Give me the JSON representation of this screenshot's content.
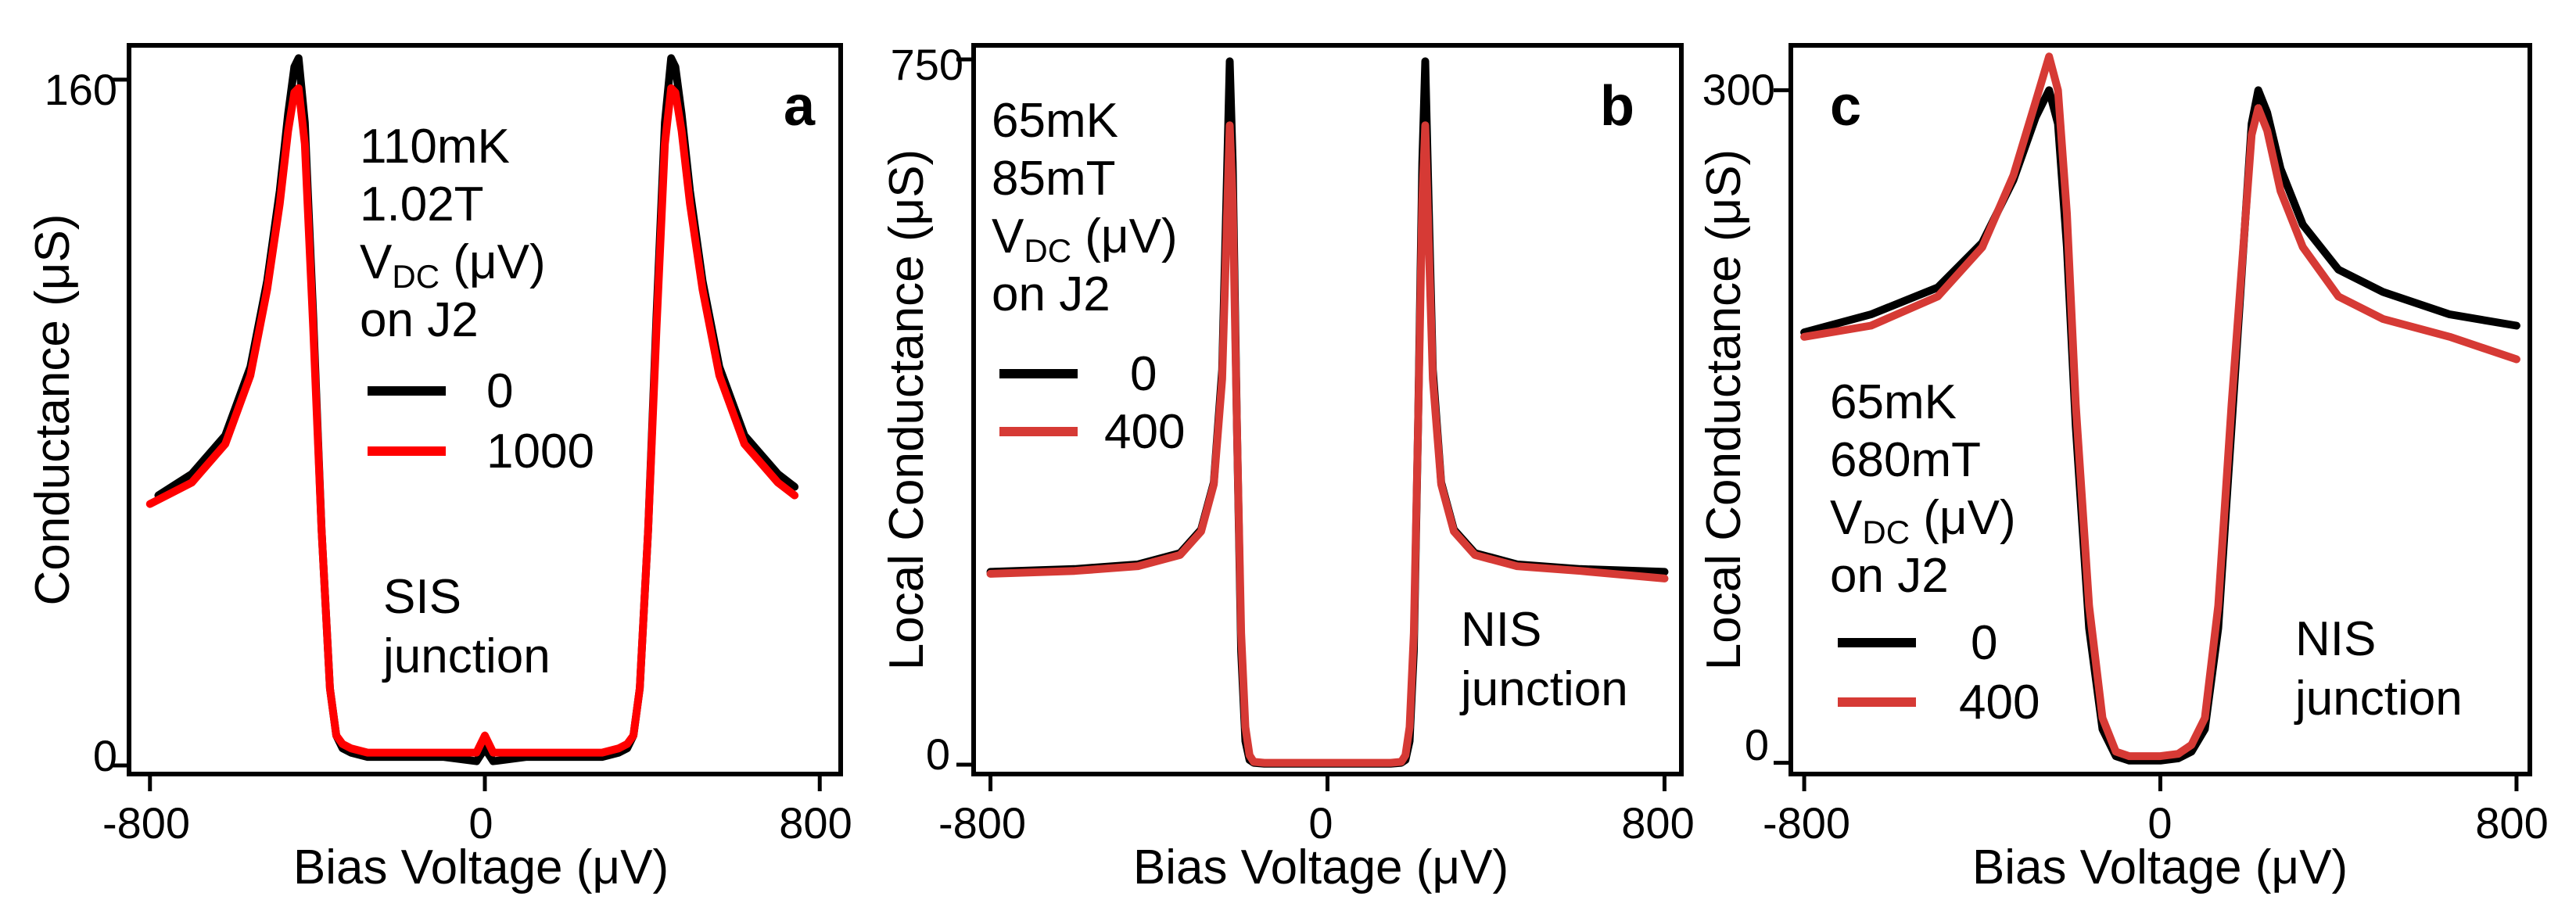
{
  "chart_data": [
    {
      "type": "line",
      "panel": "a",
      "xlabel": "Bias Voltage (μV)",
      "ylabel": "Conductance (μS)",
      "xlim": [
        -850,
        850
      ],
      "ylim": [
        -2,
        168
      ],
      "xticks": [
        -800,
        0,
        800
      ],
      "xtick_labels": [
        "-800",
        "0",
        "800"
      ],
      "yticks": [
        0,
        160
      ],
      "ytick_labels": [
        "0",
        "160"
      ],
      "annotations": {
        "temperature": "110mK",
        "field": "1.02T",
        "vdc_main": "V",
        "vdc_sub": "DC",
        "vdc_unit": " (μV)",
        "location": "on J2",
        "junction_line1": "SIS",
        "junction_line2": "junction"
      },
      "legend": [
        {
          "label": "0",
          "color": "#000000"
        },
        {
          "label": "1000",
          "color": "#ff0000"
        }
      ],
      "series": [
        {
          "name": "0",
          "color": "#000000",
          "x": [
            -780,
            -700,
            -620,
            -560,
            -520,
            -490,
            -470,
            -455,
            -445,
            -430,
            -410,
            -390,
            -370,
            -355,
            -340,
            -320,
            -280,
            -200,
            -100,
            -20,
            0,
            20,
            100,
            200,
            280,
            320,
            340,
            355,
            370,
            390,
            410,
            430,
            445,
            455,
            470,
            490,
            520,
            560,
            620,
            700,
            740
          ],
          "y": [
            63,
            68,
            77,
            93,
            113,
            134,
            152,
            163,
            165,
            150,
            105,
            55,
            18,
            7,
            4,
            3,
            2,
            2,
            2,
            1,
            4,
            1,
            2,
            2,
            2,
            3,
            4,
            7,
            18,
            55,
            105,
            150,
            165,
            163,
            152,
            134,
            113,
            93,
            77,
            68,
            65
          ]
        },
        {
          "name": "1000",
          "color": "#ff0000",
          "x": [
            -800,
            -700,
            -620,
            -560,
            -520,
            -490,
            -470,
            -455,
            -445,
            -430,
            -410,
            -390,
            -370,
            -355,
            -340,
            -320,
            -280,
            -200,
            -100,
            -20,
            0,
            20,
            100,
            200,
            280,
            320,
            340,
            355,
            370,
            390,
            410,
            430,
            445,
            455,
            470,
            490,
            520,
            560,
            620,
            700,
            740
          ],
          "y": [
            61,
            66,
            75,
            91,
            111,
            131,
            148,
            157,
            158,
            145,
            102,
            55,
            18,
            7,
            5,
            4,
            3,
            3,
            3,
            3,
            7,
            3,
            3,
            3,
            3,
            4,
            5,
            7,
            18,
            55,
            102,
            145,
            158,
            157,
            148,
            131,
            111,
            91,
            75,
            66,
            63
          ]
        }
      ]
    },
    {
      "type": "line",
      "panel": "b",
      "xlabel": "Bias Voltage (μV)",
      "ylabel": "Local Conductance (μS)",
      "xlim": [
        -840,
        840
      ],
      "ylim": [
        -10,
        765
      ],
      "xticks": [
        -800,
        0,
        800
      ],
      "xtick_labels": [
        "-800",
        "0",
        "800"
      ],
      "yticks": [
        0,
        750
      ],
      "ytick_labels": [
        "0",
        "750"
      ],
      "annotations": {
        "temperature": "65mK",
        "field": "85mT",
        "vdc_main": "V",
        "vdc_sub": "DC",
        "vdc_unit": " (μV)",
        "location": "on J2",
        "junction_line1": "NIS",
        "junction_line2": "junction"
      },
      "legend": [
        {
          "label": "0",
          "color": "#000000"
        },
        {
          "label": "400",
          "color": "#d63a35"
        }
      ],
      "series": [
        {
          "name": "0",
          "color": "#000000",
          "x": [
            -800,
            -600,
            -450,
            -350,
            -300,
            -270,
            -250,
            -240,
            -232,
            -225,
            -215,
            -205,
            -195,
            -185,
            -175,
            -150,
            -100,
            0,
            100,
            150,
            175,
            185,
            195,
            205,
            215,
            225,
            232,
            240,
            250,
            270,
            300,
            350,
            450,
            600,
            800
          ],
          "y": [
            205,
            208,
            213,
            225,
            250,
            300,
            420,
            600,
            748,
            640,
            360,
            120,
            25,
            5,
            2,
            1,
            1,
            1,
            1,
            1,
            2,
            5,
            25,
            120,
            360,
            640,
            748,
            600,
            420,
            300,
            250,
            225,
            213,
            208,
            205
          ]
        },
        {
          "name": "400",
          "color": "#d63a35",
          "x": [
            -800,
            -600,
            -450,
            -350,
            -300,
            -270,
            -250,
            -240,
            -232,
            -225,
            -215,
            -205,
            -195,
            -185,
            -175,
            -150,
            -100,
            0,
            100,
            150,
            175,
            185,
            195,
            205,
            215,
            225,
            232,
            240,
            250,
            270,
            300,
            350,
            450,
            600,
            800
          ],
          "y": [
            203,
            206,
            211,
            223,
            248,
            298,
            410,
            560,
            680,
            600,
            360,
            140,
            40,
            10,
            3,
            2,
            2,
            2,
            2,
            2,
            3,
            10,
            40,
            140,
            360,
            600,
            680,
            560,
            410,
            298,
            248,
            223,
            211,
            206,
            198
          ]
        }
      ]
    },
    {
      "type": "line",
      "panel": "c",
      "xlabel": "Bias Voltage (μV)",
      "ylabel": "Local Conductance (μS)",
      "xlim": [
        -830,
        830
      ],
      "ylim": [
        -5,
        320
      ],
      "xticks": [
        -800,
        0,
        800
      ],
      "xtick_labels": [
        "-800",
        "0",
        "800"
      ],
      "yticks": [
        0,
        300
      ],
      "ytick_labels": [
        "0",
        "300"
      ],
      "annotations": {
        "temperature": "65mK",
        "field": "680mT",
        "vdc_main": "V",
        "vdc_sub": "DC",
        "vdc_unit": " (μV)",
        "location": "on J2",
        "junction_line1": "NIS",
        "junction_line2": "junction"
      },
      "legend": [
        {
          "label": "0",
          "color": "#000000"
        },
        {
          "label": "400",
          "color": "#d63a35"
        }
      ],
      "series": [
        {
          "name": "0",
          "color": "#000000",
          "x": [
            -800,
            -650,
            -500,
            -400,
            -330,
            -280,
            -250,
            -230,
            -210,
            -190,
            -160,
            -130,
            -100,
            -70,
            -40,
            0,
            40,
            70,
            100,
            130,
            160,
            190,
            205,
            220,
            240,
            270,
            320,
            400,
            500,
            650,
            800
          ],
          "y": [
            192,
            200,
            212,
            232,
            260,
            288,
            300,
            285,
            230,
            150,
            60,
            15,
            3,
            1,
            1,
            1,
            2,
            5,
            15,
            60,
            150,
            240,
            285,
            300,
            290,
            265,
            240,
            220,
            210,
            200,
            195
          ]
        },
        {
          "name": "400",
          "color": "#d63a35",
          "x": [
            -800,
            -650,
            -500,
            -400,
            -330,
            -280,
            -250,
            -230,
            -210,
            -190,
            -160,
            -130,
            -100,
            -70,
            -40,
            0,
            40,
            70,
            100,
            130,
            160,
            190,
            205,
            220,
            240,
            270,
            320,
            400,
            500,
            650,
            800
          ],
          "y": [
            190,
            195,
            208,
            230,
            262,
            295,
            315,
            300,
            245,
            160,
            70,
            20,
            5,
            3,
            3,
            3,
            4,
            8,
            20,
            70,
            160,
            240,
            280,
            292,
            282,
            255,
            230,
            208,
            198,
            190,
            180
          ]
        }
      ]
    }
  ]
}
